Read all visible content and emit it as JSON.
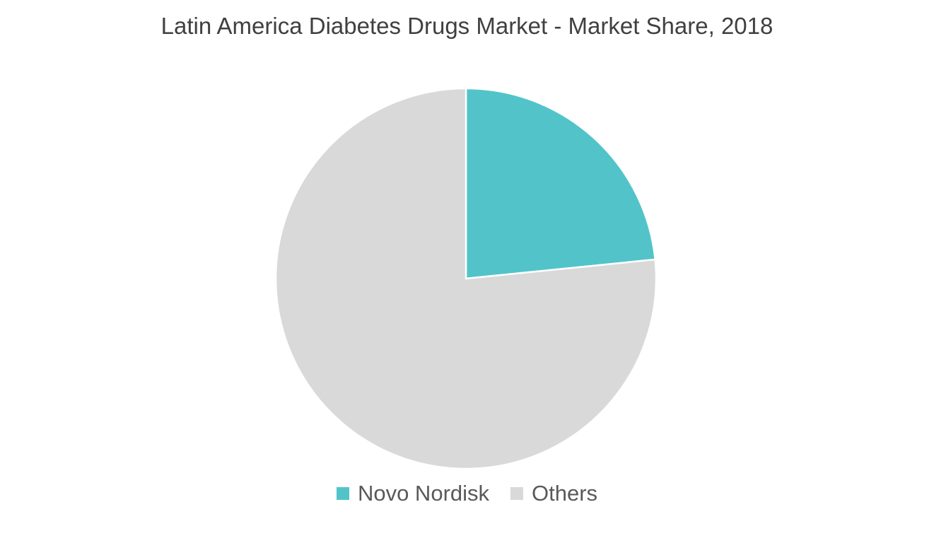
{
  "chart_data": {
    "type": "pie",
    "title": "Latin America Diabetes Drugs Market - Market Share, 2018",
    "categories": [
      "Novo Nordisk",
      "Others"
    ],
    "values": [
      23.4,
      76.6
    ],
    "colors": [
      "#52C4C9",
      "#D9D9D9"
    ],
    "legend_position": "bottom"
  }
}
